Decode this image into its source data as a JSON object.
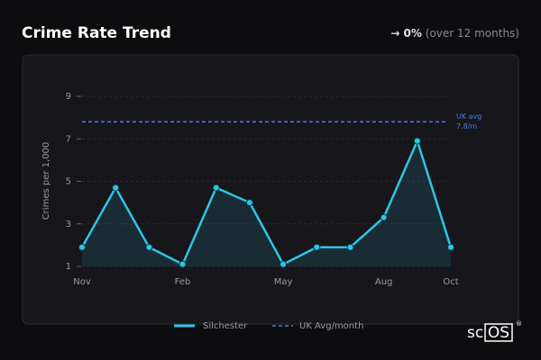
{
  "header": {
    "title": "Crime Rate Trend",
    "change": "→ 0%",
    "period": "(over 12 months)"
  },
  "chart_data": {
    "type": "line",
    "y_label": "Crimes per 1,000",
    "categories": [
      "Nov",
      null,
      null,
      "Feb",
      null,
      null,
      "May",
      null,
      null,
      "Aug",
      null,
      "Oct"
    ],
    "series": [
      {
        "name": "Silchester",
        "color": "#2ec5e8",
        "values": [
          1.9,
          4.7,
          1.9,
          1.1,
          4.7,
          4.0,
          1.1,
          1.9,
          1.9,
          3.3,
          6.9,
          1.9
        ]
      }
    ],
    "reference": {
      "name": "UK Avg/month",
      "color": "#4f7ce8",
      "value": 7.8,
      "label": "UK avg",
      "value_label": "7.8/m"
    },
    "ylim": [
      1,
      9
    ],
    "yticks": [
      1,
      3,
      5,
      7,
      9
    ],
    "grid": true
  },
  "logo": {
    "left": "sc",
    "boxed": "OS",
    "mark": "®"
  }
}
